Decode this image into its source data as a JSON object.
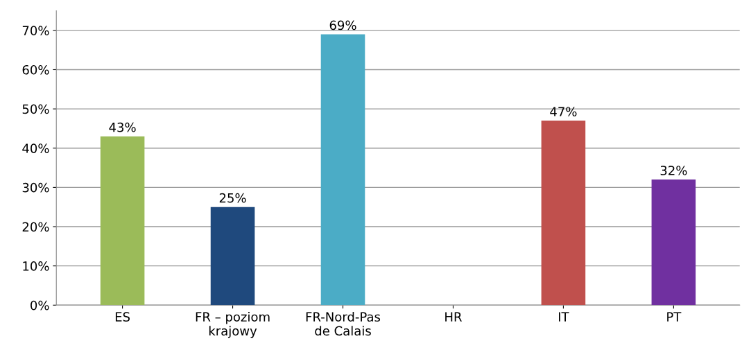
{
  "chart_data": {
    "type": "bar",
    "categories": [
      "ES",
      "FR – poziom\nkrajowy",
      "FR-Nord-Pas\nde Calais",
      "HR",
      "IT",
      "PT"
    ],
    "values": [
      43,
      25,
      69,
      0,
      47,
      32
    ],
    "colors": [
      "#9bbb59",
      "#1f497d",
      "#4bacc6",
      "#c8c800",
      "#c0504d",
      "#7030a0"
    ],
    "value_labels": [
      "43%",
      "25%",
      "69%",
      null,
      "47%",
      "32%"
    ],
    "ylim": [
      0,
      75
    ],
    "yticks": [
      {
        "value": 0,
        "label": "0%"
      },
      {
        "value": 10,
        "label": "10%"
      },
      {
        "value": 20,
        "label": "20%"
      },
      {
        "value": 30,
        "label": "30%"
      },
      {
        "value": 40,
        "label": "40%"
      },
      {
        "value": 50,
        "label": "50%"
      },
      {
        "value": 60,
        "label": "60%"
      },
      {
        "value": 70,
        "label": "70%"
      }
    ],
    "grid": "y"
  }
}
